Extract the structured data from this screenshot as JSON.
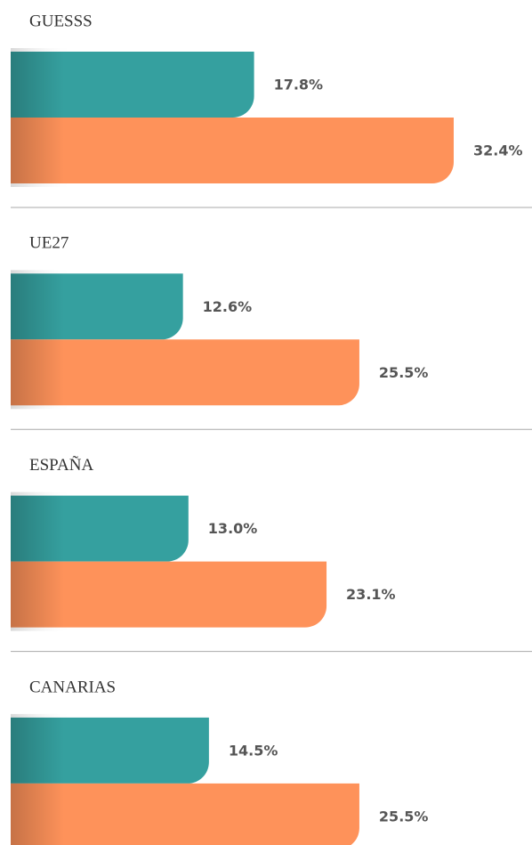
{
  "chart_data": {
    "type": "bar",
    "orientation": "horizontal",
    "categories": [
      "GUESSS",
      "UE27",
      "ESPAÑA",
      "CANARIAS"
    ],
    "series": [
      {
        "color": "#35a09f",
        "values": [
          17.8,
          12.6,
          13.0,
          14.5
        ],
        "value_labels": [
          "17.8%",
          "12.6%",
          "13.0%",
          "14.5%"
        ]
      },
      {
        "color": "#fe925a",
        "values": [
          32.4,
          25.5,
          23.1,
          25.5
        ],
        "value_labels": [
          "32.4%",
          "25.5%",
          "23.1%",
          "25.5%"
        ]
      }
    ]
  }
}
